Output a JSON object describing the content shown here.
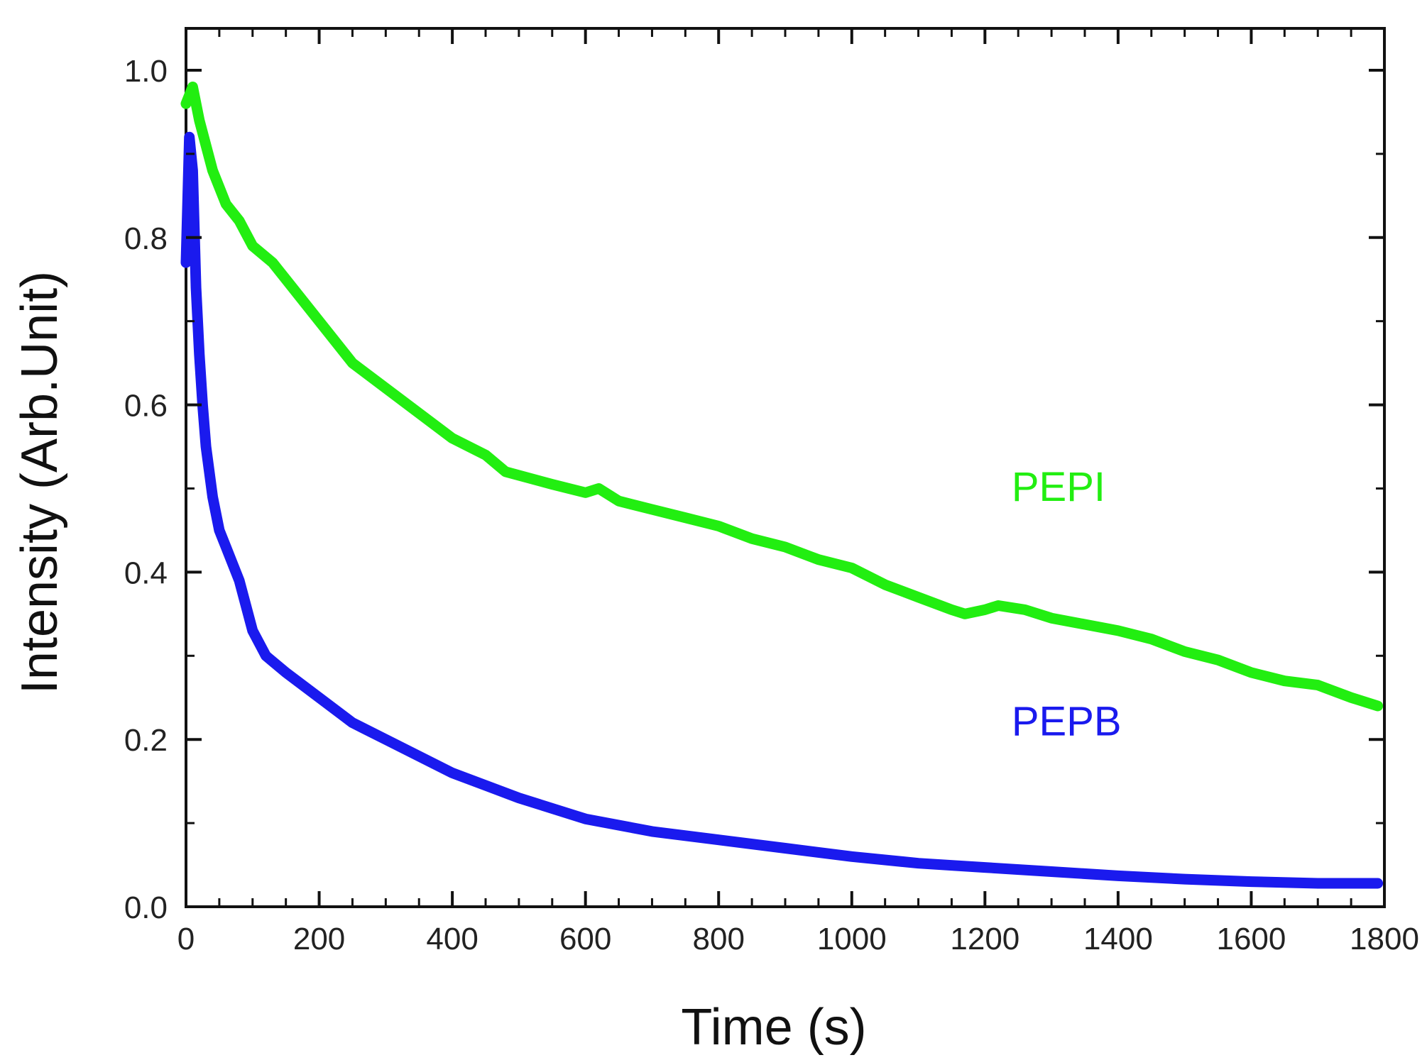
{
  "chart_data": {
    "type": "line",
    "title": "",
    "xlabel": "Time (s)",
    "ylabel": "Intensity (Arb.Unit)",
    "xlim": [
      0,
      1800
    ],
    "ylim": [
      0,
      1.05
    ],
    "x_ticks": [
      0,
      200,
      400,
      600,
      800,
      1000,
      1200,
      1400,
      1600,
      1800
    ],
    "x_tick_labels": [
      "0",
      "200",
      "400",
      "600",
      "800",
      "1000",
      "1200",
      "1400",
      "1600",
      "1800"
    ],
    "y_ticks": [
      0,
      0.2,
      0.4,
      0.6,
      0.8,
      1.0
    ],
    "y_tick_labels": [
      "0.0",
      "0.2",
      "0.4",
      "0.6",
      "0.8",
      "1.0"
    ],
    "grid": false,
    "series": [
      {
        "name": "PEPI",
        "label": "PEPI",
        "color": "#22ee11",
        "label_at": [
          1240,
          0.485
        ],
        "x": [
          0,
          10,
          20,
          40,
          60,
          80,
          100,
          130,
          150,
          200,
          250,
          300,
          350,
          400,
          450,
          480,
          550,
          600,
          620,
          650,
          700,
          750,
          800,
          850,
          900,
          950,
          1000,
          1050,
          1100,
          1150,
          1170,
          1200,
          1220,
          1260,
          1300,
          1400,
          1450,
          1500,
          1550,
          1600,
          1650,
          1700,
          1750,
          1790
        ],
        "y": [
          0.96,
          0.98,
          0.94,
          0.88,
          0.84,
          0.82,
          0.79,
          0.77,
          0.75,
          0.7,
          0.65,
          0.62,
          0.59,
          0.56,
          0.54,
          0.52,
          0.505,
          0.495,
          0.5,
          0.485,
          0.475,
          0.465,
          0.455,
          0.44,
          0.43,
          0.415,
          0.405,
          0.385,
          0.37,
          0.355,
          0.35,
          0.355,
          0.36,
          0.355,
          0.345,
          0.33,
          0.32,
          0.305,
          0.295,
          0.28,
          0.27,
          0.265,
          0.25,
          0.24
        ]
      },
      {
        "name": "PEPB",
        "label": "PEPB",
        "color": "#1a1aee",
        "label_at": [
          1240,
          0.205
        ],
        "x": [
          0,
          5,
          10,
          15,
          20,
          25,
          30,
          40,
          50,
          60,
          80,
          100,
          120,
          150,
          200,
          250,
          300,
          350,
          400,
          450,
          500,
          600,
          700,
          800,
          900,
          1000,
          1100,
          1200,
          1300,
          1400,
          1500,
          1600,
          1700,
          1790
        ],
        "y": [
          0.77,
          0.92,
          0.88,
          0.74,
          0.66,
          0.6,
          0.55,
          0.49,
          0.45,
          0.43,
          0.39,
          0.33,
          0.3,
          0.28,
          0.25,
          0.22,
          0.2,
          0.18,
          0.16,
          0.145,
          0.13,
          0.105,
          0.09,
          0.08,
          0.07,
          0.06,
          0.052,
          0.047,
          0.042,
          0.037,
          0.033,
          0.03,
          0.028,
          0.028
        ]
      }
    ]
  }
}
